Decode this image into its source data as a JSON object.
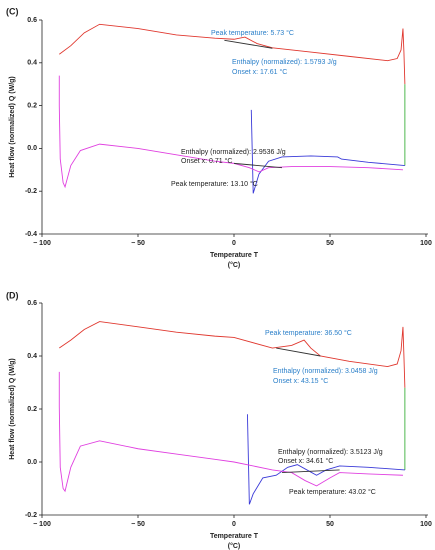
{
  "chart_data": [
    {
      "type": "line",
      "panel_label": "(C)",
      "xlabel": "Temperature T",
      "xlabel_unit": "(°C)",
      "ylabel": "Heat flow (normalized) Q (W/g)",
      "xlim": [
        -100,
        100
      ],
      "ylim": [
        -0.4,
        0.6
      ],
      "xticks": [
        {
          "value": -100,
          "label": "− 100"
        },
        {
          "value": -50,
          "label": "− 50"
        },
        0,
        50,
        100
      ],
      "yticks": [
        -0.4,
        -0.2,
        {
          "value": 0,
          "label": "0.0"
        },
        0.2,
        0.4,
        0.6
      ],
      "series": [
        {
          "color": "#e0382f",
          "x": [
            -91,
            -85,
            -78,
            -70,
            -50,
            -30,
            -10,
            0,
            5.7,
            12,
            20,
            40,
            60,
            80,
            85,
            87,
            88,
            88.5,
            89
          ],
          "values": [
            0.44,
            0.48,
            0.54,
            0.58,
            0.56,
            0.53,
            0.515,
            0.51,
            0.52,
            0.49,
            0.47,
            0.45,
            0.43,
            0.41,
            0.42,
            0.46,
            0.56,
            0.45,
            0.3
          ]
        },
        {
          "color": "#3bb03b",
          "x": [
            89,
            89
          ],
          "values": [
            0.3,
            -0.08
          ]
        },
        {
          "color": "#3a3ad8",
          "x": [
            89,
            70,
            56,
            54,
            40,
            25,
            18,
            13,
            10,
            9
          ],
          "values": [
            -0.08,
            -0.065,
            -0.05,
            -0.04,
            -0.035,
            -0.04,
            -0.06,
            -0.12,
            -0.21,
            0.18
          ]
        },
        {
          "color": "#e040e0",
          "x": [
            -91,
            -91,
            -90.5,
            -89,
            -88,
            -85,
            -80,
            -70,
            -50,
            -30,
            -10,
            0,
            8,
            13.1,
            18,
            30,
            50,
            70,
            88
          ],
          "values": [
            0.34,
            0.2,
            -0.05,
            -0.16,
            -0.18,
            -0.08,
            -0.01,
            0.02,
            0.0,
            -0.03,
            -0.06,
            -0.07,
            -0.09,
            -0.11,
            -0.09,
            -0.085,
            -0.085,
            -0.09,
            -0.1
          ]
        },
        {
          "color": "#333333",
          "x": [
            -5,
            20
          ],
          "values": [
            0.505,
            0.468
          ]
        },
        {
          "color": "#333333",
          "x": [
            0,
            25
          ],
          "values": [
            -0.07,
            -0.09
          ]
        }
      ],
      "annotations": [
        {
          "text": "Peak temperature: 5.73 °C",
          "color": "#2a7fc9"
        },
        {
          "text": "Enthalpy (normalized): 1.5793 J/g",
          "color": "#2a7fc9"
        },
        {
          "text": "Onset x: 17.61 °C",
          "color": "#2a7fc9"
        },
        {
          "text": "Enthalpy (normalized): 2.9536 J/g",
          "color": "#222222"
        },
        {
          "text": "Onset x: 0.71 °C",
          "color": "#222222"
        },
        {
          "text": "Peak temperature: 13.10 °C",
          "color": "#222222"
        }
      ]
    },
    {
      "type": "line",
      "panel_label": "(D)",
      "xlabel": "Temperature T",
      "xlabel_unit": "(°C)",
      "ylabel": "Heat flow (normalized) Q (W/g)",
      "xlim": [
        -100,
        100
      ],
      "ylim": [
        -0.2,
        0.6
      ],
      "xticks": [
        {
          "value": -100,
          "label": "− 100"
        },
        {
          "value": -50,
          "label": "− 50"
        },
        0,
        50,
        100
      ],
      "yticks": [
        -0.2,
        {
          "value": 0,
          "label": "0.0"
        },
        0.2,
        0.4,
        0.6
      ],
      "series": [
        {
          "color": "#e0382f",
          "x": [
            -91,
            -85,
            -78,
            -70,
            -50,
            -30,
            -10,
            0,
            20,
            30,
            36.5,
            40,
            45,
            60,
            80,
            85,
            87,
            88,
            88.5,
            89
          ],
          "values": [
            0.43,
            0.46,
            0.5,
            0.53,
            0.51,
            0.49,
            0.475,
            0.47,
            0.43,
            0.44,
            0.46,
            0.43,
            0.4,
            0.38,
            0.36,
            0.37,
            0.42,
            0.51,
            0.4,
            0.28
          ]
        },
        {
          "color": "#3bb03b",
          "x": [
            89,
            89
          ],
          "values": [
            0.28,
            -0.03
          ]
        },
        {
          "color": "#3a3ad8",
          "x": [
            89,
            70,
            55,
            48,
            43,
            38,
            33,
            28,
            22,
            15,
            10,
            8,
            7
          ],
          "values": [
            -0.03,
            -0.02,
            -0.015,
            -0.03,
            -0.05,
            -0.03,
            -0.01,
            -0.02,
            -0.05,
            -0.06,
            -0.12,
            -0.16,
            0.18
          ]
        },
        {
          "color": "#e040e0",
          "x": [
            -91,
            -91,
            -90.5,
            -89,
            -88,
            -85,
            -80,
            -70,
            -50,
            -30,
            -10,
            0,
            20,
            30,
            37,
            43,
            50,
            55,
            70,
            88
          ],
          "values": [
            0.34,
            0.21,
            -0.02,
            -0.1,
            -0.11,
            -0.02,
            0.06,
            0.08,
            0.05,
            0.03,
            0.01,
            0.0,
            -0.03,
            -0.04,
            -0.07,
            -0.09,
            -0.06,
            -0.04,
            -0.045,
            -0.05
          ]
        },
        {
          "color": "#333333",
          "x": [
            22,
            45
          ],
          "values": [
            0.43,
            0.4
          ]
        },
        {
          "color": "#333333",
          "x": [
            25,
            55
          ],
          "values": [
            -0.04,
            -0.03
          ]
        }
      ],
      "annotations": [
        {
          "text": "Peak temperature: 36.50 °C",
          "color": "#2a7fc9"
        },
        {
          "text": "Enthalpy (normalized): 3.0458 J/g",
          "color": "#2a7fc9"
        },
        {
          "text": "Onset x: 43.15 °C",
          "color": "#2a7fc9"
        },
        {
          "text": "Enthalpy (normalized): 3.5123 J/g",
          "color": "#222222"
        },
        {
          "text": "Onset x: 34.61 °C",
          "color": "#222222"
        },
        {
          "text": "Peak temperature: 43.02 °C",
          "color": "#222222"
        }
      ]
    }
  ]
}
